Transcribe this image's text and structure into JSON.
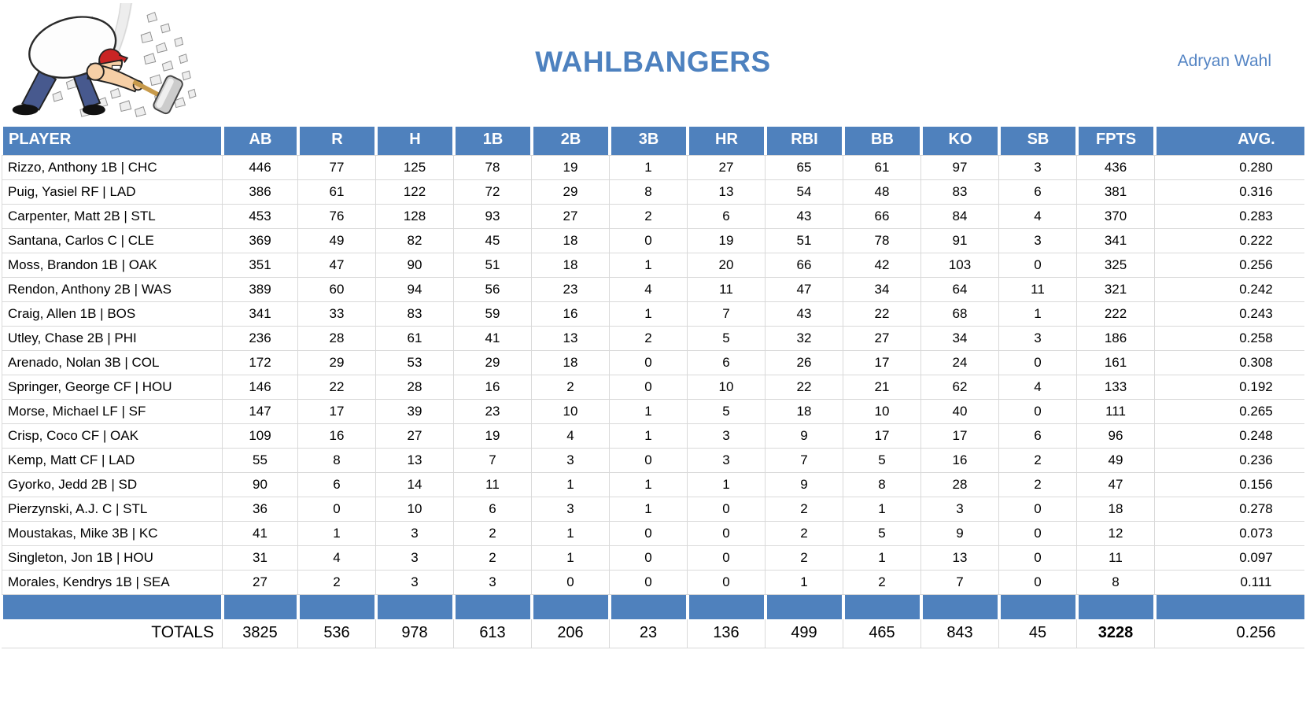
{
  "header": {
    "team_name": "WAHLBANGERS",
    "owner_name": "Adryan Wahl",
    "logo_description": "cartoon man in red cap smashing rocks with sledgehammer"
  },
  "colors": {
    "accent_blue": "#4F81BD",
    "title_blue": "#4D81BF",
    "owner_blue": "#5585C4",
    "grid_gray": "#D9D9D9"
  },
  "table": {
    "columns": [
      "PLAYER",
      "AB",
      "R",
      "H",
      "1B",
      "2B",
      "3B",
      "HR",
      "RBI",
      "BB",
      "KO",
      "SB",
      "FPTS",
      "AVG."
    ],
    "players": [
      {
        "name": "Rizzo, Anthony 1B | CHC",
        "stats": [
          446,
          77,
          125,
          78,
          19,
          1,
          27,
          65,
          61,
          97,
          3,
          436,
          "0.280"
        ]
      },
      {
        "name": "Puig, Yasiel RF | LAD",
        "stats": [
          386,
          61,
          122,
          72,
          29,
          8,
          13,
          54,
          48,
          83,
          6,
          381,
          "0.316"
        ]
      },
      {
        "name": "Carpenter, Matt 2B | STL",
        "stats": [
          453,
          76,
          128,
          93,
          27,
          2,
          6,
          43,
          66,
          84,
          4,
          370,
          "0.283"
        ]
      },
      {
        "name": "Santana, Carlos C | CLE",
        "stats": [
          369,
          49,
          82,
          45,
          18,
          0,
          19,
          51,
          78,
          91,
          3,
          341,
          "0.222"
        ]
      },
      {
        "name": "Moss, Brandon 1B | OAK",
        "stats": [
          351,
          47,
          90,
          51,
          18,
          1,
          20,
          66,
          42,
          103,
          0,
          325,
          "0.256"
        ]
      },
      {
        "name": "Rendon, Anthony 2B | WAS",
        "stats": [
          389,
          60,
          94,
          56,
          23,
          4,
          11,
          47,
          34,
          64,
          11,
          321,
          "0.242"
        ]
      },
      {
        "name": "Craig, Allen 1B | BOS",
        "stats": [
          341,
          33,
          83,
          59,
          16,
          1,
          7,
          43,
          22,
          68,
          1,
          222,
          "0.243"
        ]
      },
      {
        "name": "Utley, Chase 2B | PHI",
        "stats": [
          236,
          28,
          61,
          41,
          13,
          2,
          5,
          32,
          27,
          34,
          3,
          186,
          "0.258"
        ]
      },
      {
        "name": "Arenado, Nolan 3B | COL",
        "stats": [
          172,
          29,
          53,
          29,
          18,
          0,
          6,
          26,
          17,
          24,
          0,
          161,
          "0.308"
        ]
      },
      {
        "name": "Springer, George CF | HOU",
        "stats": [
          146,
          22,
          28,
          16,
          2,
          0,
          10,
          22,
          21,
          62,
          4,
          133,
          "0.192"
        ]
      },
      {
        "name": "Morse, Michael LF | SF",
        "stats": [
          147,
          17,
          39,
          23,
          10,
          1,
          5,
          18,
          10,
          40,
          0,
          111,
          "0.265"
        ]
      },
      {
        "name": "Crisp, Coco CF | OAK",
        "stats": [
          109,
          16,
          27,
          19,
          4,
          1,
          3,
          9,
          17,
          17,
          6,
          96,
          "0.248"
        ]
      },
      {
        "name": "Kemp, Matt CF | LAD",
        "stats": [
          55,
          8,
          13,
          7,
          3,
          0,
          3,
          7,
          5,
          16,
          2,
          49,
          "0.236"
        ]
      },
      {
        "name": "Gyorko, Jedd 2B | SD",
        "stats": [
          90,
          6,
          14,
          11,
          1,
          1,
          1,
          9,
          8,
          28,
          2,
          47,
          "0.156"
        ]
      },
      {
        "name": "Pierzynski, A.J. C | STL",
        "stats": [
          36,
          0,
          10,
          6,
          3,
          1,
          0,
          2,
          1,
          3,
          0,
          18,
          "0.278"
        ]
      },
      {
        "name": "Moustakas, Mike 3B | KC",
        "stats": [
          41,
          1,
          3,
          2,
          1,
          0,
          0,
          2,
          5,
          9,
          0,
          12,
          "0.073"
        ]
      },
      {
        "name": "Singleton, Jon 1B | HOU",
        "stats": [
          31,
          4,
          3,
          2,
          1,
          0,
          0,
          2,
          1,
          13,
          0,
          11,
          "0.097"
        ]
      },
      {
        "name": "Morales, Kendrys 1B | SEA",
        "stats": [
          27,
          2,
          3,
          3,
          0,
          0,
          0,
          1,
          2,
          7,
          0,
          8,
          "0.111"
        ]
      }
    ],
    "totals": {
      "label": "TOTALS",
      "stats": [
        3825,
        536,
        978,
        613,
        206,
        23,
        136,
        499,
        465,
        843,
        45,
        3228,
        "0.256"
      ]
    }
  }
}
